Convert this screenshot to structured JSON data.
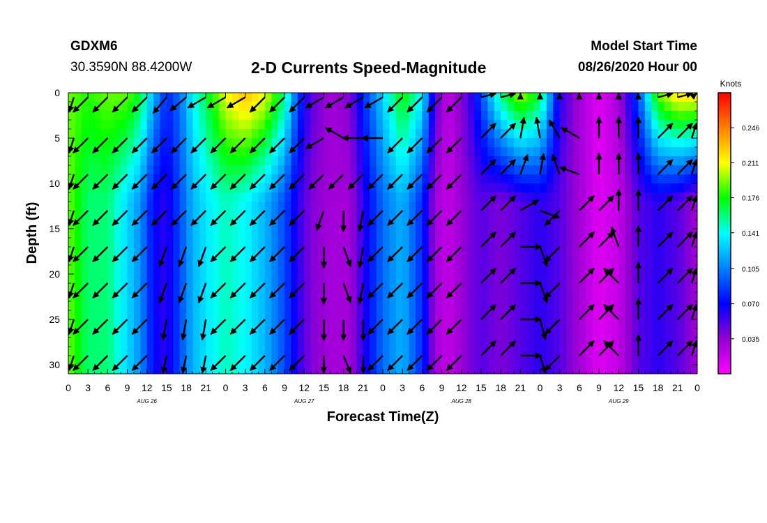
{
  "header": {
    "station": "GDXM6",
    "coords": "30.3590N 88.4200W",
    "title": "2-D Currents Speed-Magnitude",
    "model_start_label": "Model Start Time",
    "model_start_value": "08/26/2020 Hour 00"
  },
  "chart_data": {
    "type": "heatmap",
    "title": "2-D Currents Speed-Magnitude",
    "xlabel": "Forecast Time(Z)",
    "ylabel": "Depth (ft)",
    "x_ticks": [
      "0",
      "3",
      "6",
      "9",
      "12",
      "15",
      "18",
      "21",
      "0",
      "3",
      "6",
      "9",
      "12",
      "15",
      "18",
      "21",
      "0",
      "3",
      "6",
      "9",
      "12",
      "15",
      "18",
      "21",
      "0",
      "3",
      "6",
      "9",
      "12",
      "15",
      "18",
      "21",
      "0"
    ],
    "x_tick_hours": [
      0,
      3,
      6,
      9,
      12,
      15,
      18,
      21,
      24,
      27,
      30,
      33,
      36,
      39,
      42,
      45,
      48,
      51,
      54,
      57,
      60,
      63,
      66,
      69,
      72,
      75,
      78,
      81,
      84,
      87,
      90,
      93,
      96
    ],
    "day_labels": [
      {
        "text": "AUG 26",
        "hour": 12
      },
      {
        "text": "AUG 27",
        "hour": 36
      },
      {
        "text": "AUG 28",
        "hour": 60
      },
      {
        "text": "AUG 29",
        "hour": 84
      }
    ],
    "xlim": [
      0,
      96
    ],
    "y_ticks": [
      0,
      5,
      10,
      15,
      20,
      25,
      30
    ],
    "ylim": [
      0,
      31
    ],
    "y_inverted": true,
    "colorbar": {
      "unit": "Knots",
      "ticks": [
        0.246,
        0.211,
        0.176,
        0.141,
        0.105,
        0.07,
        0.035
      ],
      "range": [
        0,
        0.281
      ],
      "colors": [
        "#ff00ff",
        "#9400d3",
        "#0000ff",
        "#0080ff",
        "#00ffff",
        "#00ff00",
        "#ffff00",
        "#ff8000",
        "#ff0000"
      ]
    },
    "speed_profile": [
      {
        "hour": 0,
        "surface": 0.19,
        "bottom": 0.19
      },
      {
        "hour": 3,
        "surface": 0.18,
        "bottom": 0.16
      },
      {
        "hour": 6,
        "surface": 0.19,
        "bottom": 0.16
      },
      {
        "hour": 9,
        "surface": 0.19,
        "bottom": 0.13
      },
      {
        "hour": 11,
        "surface": 0.17,
        "bottom": 0.11
      },
      {
        "hour": 13,
        "surface": 0.12,
        "bottom": 0.07
      },
      {
        "hour": 15,
        "surface": 0.08,
        "bottom": 0.06
      },
      {
        "hour": 17,
        "surface": 0.1,
        "bottom": 0.09
      },
      {
        "hour": 19,
        "surface": 0.14,
        "bottom": 0.12
      },
      {
        "hour": 22,
        "surface": 0.18,
        "bottom": 0.14
      },
      {
        "hour": 24,
        "surface": 0.21,
        "bottom": 0.15
      },
      {
        "hour": 27,
        "surface": 0.23,
        "bottom": 0.14
      },
      {
        "hour": 30,
        "surface": 0.21,
        "bottom": 0.12
      },
      {
        "hour": 33,
        "surface": 0.16,
        "bottom": 0.09
      },
      {
        "hour": 35,
        "surface": 0.09,
        "bottom": 0.06
      },
      {
        "hour": 37,
        "surface": 0.05,
        "bottom": 0.04
      },
      {
        "hour": 40,
        "surface": 0.03,
        "bottom": 0.03
      },
      {
        "hour": 43,
        "surface": 0.04,
        "bottom": 0.03
      },
      {
        "hour": 45,
        "surface": 0.08,
        "bottom": 0.06
      },
      {
        "hour": 48,
        "surface": 0.13,
        "bottom": 0.1
      },
      {
        "hour": 51,
        "surface": 0.18,
        "bottom": 0.12
      },
      {
        "hour": 54,
        "surface": 0.14,
        "bottom": 0.08
      },
      {
        "hour": 56,
        "surface": 0.05,
        "bottom": 0.03
      },
      {
        "hour": 58,
        "surface": 0.02,
        "bottom": 0.02
      },
      {
        "hour": 61,
        "surface": 0.05,
        "bottom": 0.04
      },
      {
        "hour": 63,
        "surface": 0.09,
        "bottom": 0.05
      },
      {
        "hour": 66,
        "surface": 0.16,
        "bottom": 0.04
      },
      {
        "hour": 69,
        "surface": 0.2,
        "bottom": 0.05
      },
      {
        "hour": 72,
        "surface": 0.17,
        "bottom": 0.06
      },
      {
        "hour": 75,
        "surface": 0.06,
        "bottom": 0.05
      },
      {
        "hour": 78,
        "surface": 0.03,
        "bottom": 0.03
      },
      {
        "hour": 81,
        "surface": 0.01,
        "bottom": 0.01
      },
      {
        "hour": 84,
        "surface": 0.03,
        "bottom": 0.02
      },
      {
        "hour": 87,
        "surface": 0.09,
        "bottom": 0.05
      },
      {
        "hour": 90,
        "surface": 0.19,
        "bottom": 0.06
      },
      {
        "hour": 93,
        "surface": 0.22,
        "bottom": 0.05
      },
      {
        "hour": 96,
        "surface": 0.22,
        "bottom": 0.03
      }
    ],
    "vector_hours": [
      0,
      3,
      6,
      9,
      12,
      15,
      18,
      21,
      24,
      27,
      30,
      33,
      36,
      39,
      42,
      45,
      48,
      51,
      54,
      57,
      60,
      63,
      66,
      69,
      72,
      75,
      78,
      81,
      84,
      87,
      90,
      93,
      96
    ],
    "vector_depths": [
      0.5,
      5,
      9,
      13,
      17,
      21,
      25,
      29
    ],
    "vector_direction_deg": [
      [
        225,
        225,
        225,
        225,
        225,
        220,
        230,
        240,
        240,
        240,
        225,
        225,
        225,
        240,
        240,
        240,
        240,
        225,
        225,
        225,
        225,
        45,
        45,
        0,
        0,
        0,
        0,
        0,
        0,
        0,
        45,
        45,
        45
      ],
      [
        225,
        225,
        225,
        225,
        225,
        225,
        225,
        225,
        225,
        225,
        225,
        225,
        225,
        240,
        300,
        270,
        270,
        225,
        225,
        225,
        225,
        45,
        45,
        10,
        350,
        330,
        300,
        0,
        0,
        0,
        45,
        45,
        45
      ],
      [
        225,
        225,
        225,
        225,
        225,
        225,
        225,
        225,
        225,
        225,
        225,
        225,
        225,
        225,
        225,
        225,
        225,
        225,
        225,
        225,
        225,
        45,
        45,
        20,
        10,
        340,
        290,
        0,
        0,
        0,
        45,
        45,
        45
      ],
      [
        225,
        225,
        225,
        225,
        225,
        225,
        225,
        225,
        225,
        225,
        225,
        225,
        225,
        200,
        180,
        190,
        225,
        225,
        225,
        225,
        225,
        45,
        45,
        60,
        110,
        225,
        45,
        45,
        0,
        0,
        45,
        45,
        45
      ],
      [
        225,
        225,
        225,
        225,
        225,
        200,
        200,
        200,
        225,
        225,
        225,
        225,
        225,
        180,
        160,
        190,
        225,
        225,
        225,
        225,
        225,
        45,
        45,
        90,
        160,
        225,
        45,
        45,
        340,
        0,
        45,
        45,
        45
      ],
      [
        225,
        225,
        225,
        225,
        225,
        200,
        200,
        200,
        225,
        225,
        225,
        225,
        225,
        180,
        160,
        190,
        225,
        225,
        225,
        225,
        225,
        45,
        45,
        90,
        160,
        225,
        45,
        45,
        315,
        0,
        45,
        45,
        45
      ],
      [
        225,
        225,
        225,
        225,
        225,
        190,
        190,
        190,
        225,
        225,
        225,
        225,
        225,
        180,
        180,
        180,
        225,
        225,
        225,
        225,
        225,
        45,
        45,
        90,
        165,
        225,
        45,
        45,
        315,
        0,
        45,
        45,
        45
      ],
      [
        225,
        225,
        225,
        225,
        225,
        190,
        190,
        190,
        225,
        225,
        225,
        225,
        225,
        180,
        160,
        180,
        225,
        225,
        225,
        225,
        225,
        45,
        45,
        90,
        165,
        225,
        45,
        45,
        315,
        0,
        45,
        45,
        45
      ]
    ]
  }
}
